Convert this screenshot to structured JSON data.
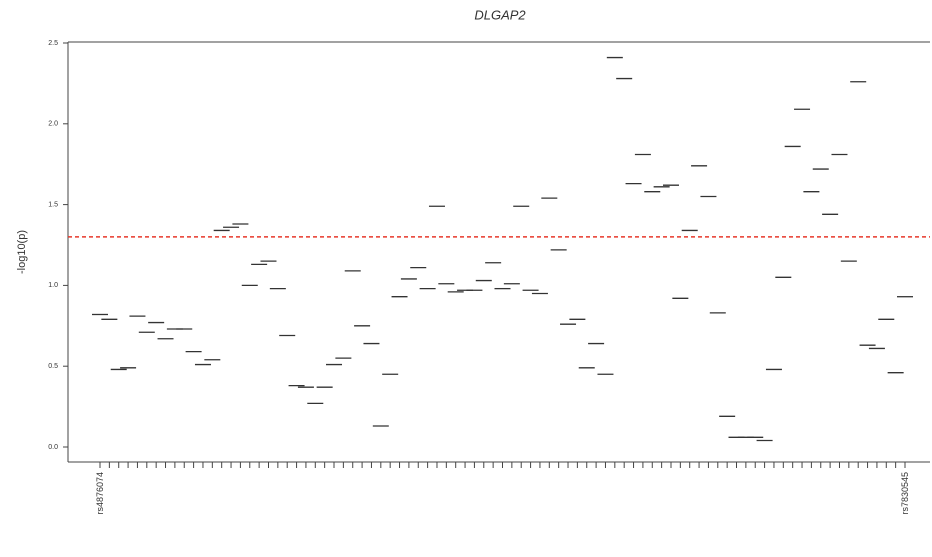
{
  "chart_data": {
    "type": "dash",
    "title": "DLGAP2",
    "y_label": "-log10(p)",
    "categories": [
      "rs4876074",
      null,
      null,
      null,
      null,
      null,
      null,
      null,
      null,
      null,
      null,
      null,
      null,
      null,
      null,
      null,
      null,
      null,
      null,
      null,
      null,
      null,
      null,
      null,
      null,
      null,
      null,
      null,
      null,
      null,
      null,
      null,
      null,
      null,
      null,
      null,
      null,
      null,
      null,
      null,
      null,
      null,
      null,
      null,
      null,
      null,
      null,
      null,
      null,
      null,
      null,
      null,
      null,
      null,
      null,
      null,
      null,
      null,
      null,
      null,
      null,
      null,
      null,
      null,
      null,
      null,
      null,
      null,
      null,
      null,
      null,
      null,
      null,
      null,
      null,
      null,
      null,
      null,
      null,
      null,
      null,
      null,
      null,
      null,
      null,
      null,
      "rs7830545"
    ],
    "values": [
      0.82,
      0.79,
      0.48,
      0.49,
      0.81,
      0.71,
      0.77,
      0.67,
      0.73,
      0.73,
      0.59,
      0.51,
      0.54,
      1.34,
      1.36,
      1.38,
      1.0,
      1.13,
      1.15,
      0.98,
      0.69,
      0.38,
      0.37,
      0.27,
      0.37,
      0.51,
      0.55,
      1.09,
      0.75,
      0.64,
      0.13,
      0.45,
      0.93,
      1.04,
      1.11,
      0.98,
      1.49,
      1.01,
      0.96,
      0.97,
      0.97,
      1.03,
      1.14,
      0.98,
      1.01,
      1.49,
      0.97,
      0.95,
      1.54,
      1.22,
      0.76,
      0.79,
      0.49,
      0.64,
      0.45,
      2.41,
      2.28,
      1.63,
      1.81,
      1.58,
      1.61,
      1.62,
      0.92,
      1.34,
      1.74,
      1.55,
      0.83,
      0.19,
      0.06,
      0.06,
      0.06,
      0.04,
      0.48,
      1.05,
      1.86,
      2.09,
      1.58,
      1.72,
      1.44,
      1.81,
      1.15,
      2.26,
      0.63,
      0.61,
      0.79,
      0.46,
      0.93
    ],
    "color": "#333333",
    "threshold": 1.3,
    "threshold_color": "#e8382a",
    "ylim": [
      0,
      2.5
    ],
    "yticks": [
      {
        "value": 0,
        "label": "0.0"
      },
      0.5,
      {
        "value": 1,
        "label": "1.0"
      },
      1.5,
      {
        "value": 2,
        "label": "2.0"
      },
      2.5
    ]
  }
}
